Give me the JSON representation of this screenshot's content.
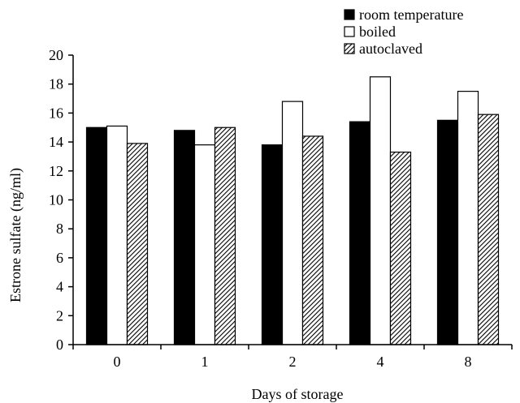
{
  "chart_data": {
    "type": "bar",
    "title": "",
    "xlabel": "Days of storage",
    "ylabel": "Estrone sulfate (ng/ml)",
    "categories": [
      "0",
      "1",
      "2",
      "4",
      "8"
    ],
    "ylim": [
      0,
      20
    ],
    "yticks": [
      0,
      2,
      4,
      6,
      8,
      10,
      12,
      14,
      16,
      18,
      20
    ],
    "grid": false,
    "legend_position": "top-right",
    "series": [
      {
        "name": "room temperature",
        "values": [
          15.0,
          14.8,
          13.8,
          15.4,
          15.5
        ],
        "fill": "#000000",
        "pattern": "solid"
      },
      {
        "name": "boiled",
        "values": [
          15.1,
          13.8,
          16.8,
          18.5,
          17.5
        ],
        "fill": "#ffffff",
        "pattern": "solid"
      },
      {
        "name": "autoclaved",
        "values": [
          13.9,
          15.0,
          14.4,
          13.3,
          15.9
        ],
        "fill": "#000000",
        "pattern": "diagonal-hatch"
      }
    ]
  }
}
